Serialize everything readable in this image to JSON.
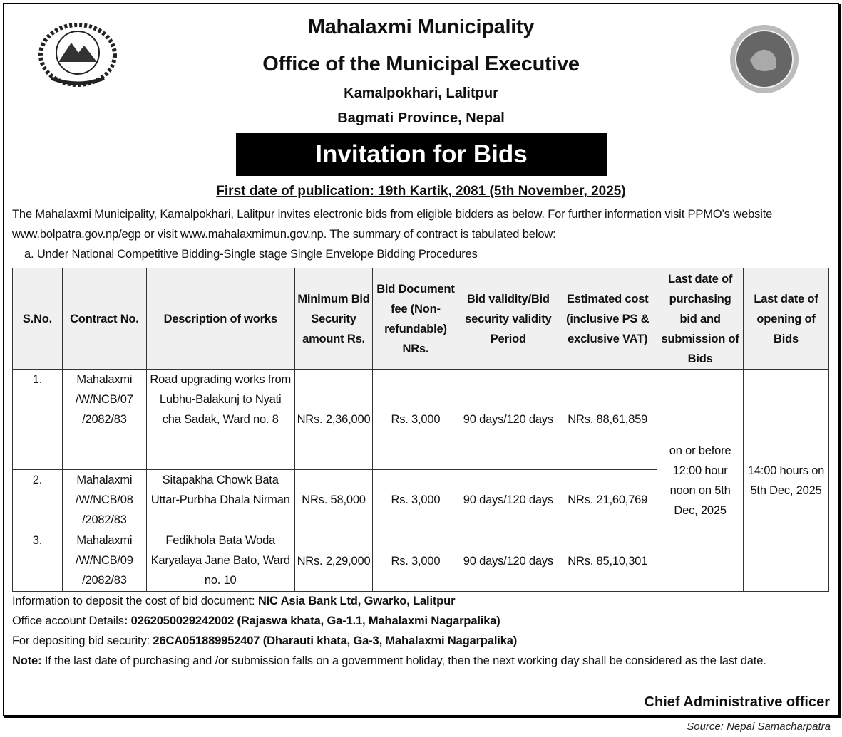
{
  "header": {
    "line1": "Mahalaxmi Municipality",
    "line2": "Office of the Municipal Executive",
    "line3": "Kamalpokhari, Lalitpur",
    "line4": "Bagmati Province, Nepal",
    "banner": "Invitation for Bids",
    "publication": "First date of publication: 19th Kartik, 2081 (5th November, 2025)"
  },
  "intro": {
    "text1": "The Mahalaxmi Municipality, Kamalpokhari, Lalitpur invites electronic bids from eligible bidders as below. For further information visit PPMO’s website ",
    "link": "www.bolpatra.gov.np/egp",
    "text2": " or visit www.mahalaxmimun.gov.np. The summary of contract is tabulated below:",
    "item_a": "a.   Under National Competitive Bidding-Single stage Single Envelope Bidding  Procedures"
  },
  "table": {
    "headers": [
      "S.No.",
      "Contract No.",
      "Description of works",
      "Minimum Bid Security amount Rs.",
      "Bid Document fee (Non-refundable) NRs.",
      "Bid validity/Bid security validity Period",
      "Estimated cost (inclusive PS & exclusive VAT)",
      "Last date of purchasing bid and submission of Bids",
      "Last date of opening of Bids"
    ],
    "rows": [
      {
        "sno": "1.",
        "contract": "Mahalaxmi /W/NCB/07 /2082/83",
        "desc": "Road upgrading works from Lubhu-Balakunj to Nyati  cha Sadak, Ward no. 8",
        "security": "NRs. 2,36,000",
        "fee": "Rs. 3,000",
        "validity": "90 days/120 days",
        "cost": "NRs. 88,61,859"
      },
      {
        "sno": "2.",
        "contract": "Mahalaxmi /W/NCB/08 /2082/83",
        "desc": "Sitapakha Chowk Bata Uttar-Purbha Dhala Nirman",
        "security": "NRs. 58,000",
        "fee": "Rs. 3,000",
        "validity": "90 days/120 days",
        "cost": "NRs. 21,60,769"
      },
      {
        "sno": "3.",
        "contract": "Mahalaxmi /W/NCB/09 /2082/83",
        "desc": "Fedikhola Bata Woda Karyalaya Jane Bato, Ward no. 10",
        "security": "NRs. 2,29,000",
        "fee": "Rs. 3,000",
        "validity": "90 days/120 days",
        "cost": "NRs. 85,10,301"
      }
    ],
    "last_submission": "on or before 12:00 hour noon on 5th  Dec, 2025",
    "opening": "14:00 hours on 5th Dec, 2025"
  },
  "footer": {
    "deposit_label": "Information to deposit the cost of bid document: ",
    "deposit_value": "NIC Asia Bank Ltd, Gwarko, Lalitpur",
    "account_label": "Office account Details",
    "account_value": ": 0262050029242002 (Rajaswa khata, Ga-1.1, Mahalaxmi Nagarpalika)",
    "security_label": "For depositing bid security: ",
    "security_value": "26CA051889952407 (Dharauti khata, Ga-3, Mahalaxmi Nagarpalika)",
    "note_label": "Note:",
    "note_text": "  If the last date of purchasing and /or submission falls on a government holiday, then the next working day shall be considered as the last date.",
    "signatory": "Chief Administrative officer"
  },
  "source": "Source: Nepal Samacharpatra"
}
